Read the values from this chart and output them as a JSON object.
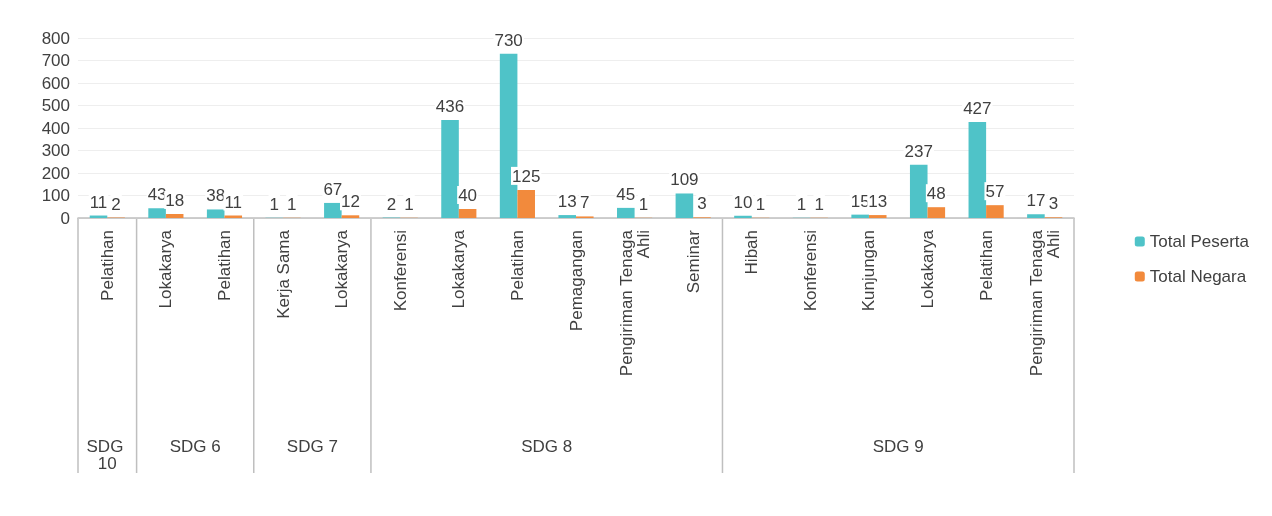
{
  "chart_data": {
    "type": "bar",
    "categories": [
      "Pelatihan",
      "Lokakarya",
      "Pelatihan",
      "Kerja Sama",
      "Lokakarya",
      "Konferensi",
      "Lokakarya",
      "Pelatihan",
      "Pemagangan",
      "Pengiriman Tenaga Ahli",
      "Seminar",
      "Hibah",
      "Konferensi",
      "Kunjungan",
      "Lokakarya",
      "Pelatihan",
      "Pengiriman Tenaga Ahli"
    ],
    "series": [
      {
        "name": "Total Peserta",
        "color": "#4fc3c8",
        "values": [
          11,
          43,
          38,
          1,
          67,
          2,
          436,
          730,
          13,
          45,
          109,
          10,
          1,
          15,
          237,
          427,
          17
        ]
      },
      {
        "name": "Total Negara",
        "color": "#f28a3c",
        "values": [
          2,
          18,
          11,
          1,
          12,
          1,
          40,
          125,
          7,
          1,
          3,
          1,
          1,
          13,
          48,
          57,
          3
        ]
      }
    ],
    "ylim": [
      0,
      800
    ],
    "yticks": [
      0,
      100,
      200,
      300,
      400,
      500,
      600,
      700,
      800
    ],
    "grid": "y",
    "legend": "right",
    "data_labels": true,
    "annotations": [
      "SDG 10",
      "SDG 6",
      "SDG 7",
      "SDG 8",
      "SDG 9"
    ]
  }
}
